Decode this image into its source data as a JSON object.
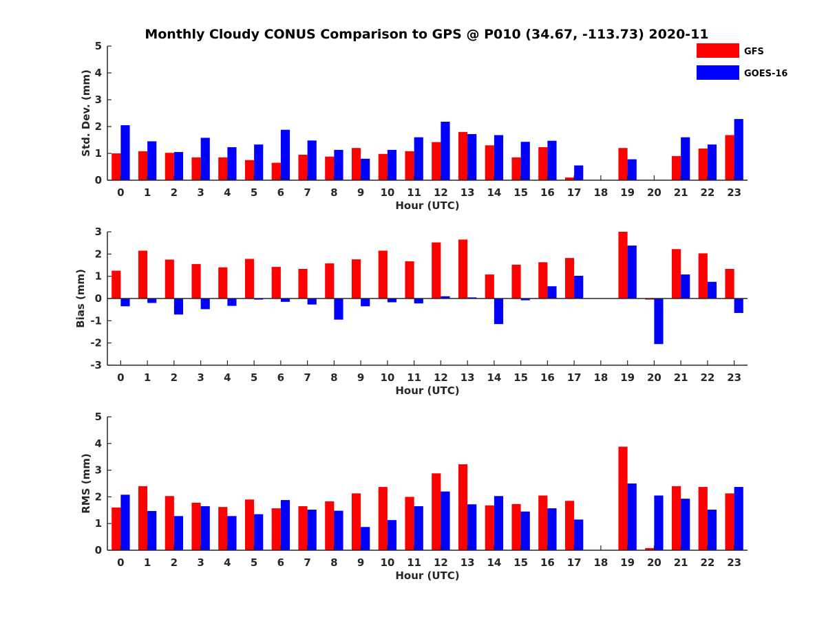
{
  "title": "Monthly Cloudy CONUS Comparison to GPS @ P010 (34.67, -113.73) 2020-11",
  "legend": {
    "placement": "top-right",
    "entries": [
      {
        "name": "GFS",
        "color": "#ff0000"
      },
      {
        "name": "GOES-16",
        "color": "#0000ff"
      }
    ]
  },
  "chart_data": [
    {
      "type": "bar",
      "title": "Monthly Cloudy CONUS Comparison to GPS @ P010 (34.67, -113.73) 2020-11",
      "xlabel": "Hour (UTC)",
      "ylabel": "Std. Dev. (mm)",
      "ylim": [
        0,
        5
      ],
      "yticks": [
        0,
        1,
        2,
        3,
        4,
        5
      ],
      "categories": [
        "0",
        "1",
        "2",
        "3",
        "4",
        "5",
        "6",
        "7",
        "8",
        "9",
        "10",
        "11",
        "12",
        "13",
        "14",
        "15",
        "16",
        "17",
        "18",
        "19",
        "20",
        "21",
        "22",
        "23"
      ],
      "series": [
        {
          "name": "GFS",
          "color": "#ff0000",
          "values": [
            1.0,
            1.08,
            1.02,
            0.85,
            0.85,
            0.75,
            0.65,
            0.95,
            0.88,
            1.2,
            0.98,
            1.08,
            1.42,
            1.8,
            1.3,
            0.85,
            1.23,
            0.1,
            0,
            1.2,
            0,
            0.9,
            1.18,
            1.68
          ]
        },
        {
          "name": "GOES-16",
          "color": "#0000ff",
          "values": [
            2.05,
            1.45,
            1.05,
            1.58,
            1.23,
            1.33,
            1.88,
            1.48,
            1.13,
            0.8,
            1.13,
            1.6,
            2.18,
            1.72,
            1.68,
            1.43,
            1.47,
            0.55,
            0,
            0.78,
            0,
            1.6,
            1.33,
            2.28
          ]
        }
      ]
    },
    {
      "type": "bar",
      "xlabel": "Hour (UTC)",
      "ylabel": "Bias (mm)",
      "ylim": [
        -3,
        3
      ],
      "yticks": [
        -3,
        -2,
        -1,
        0,
        1,
        2,
        3
      ],
      "categories": [
        "0",
        "1",
        "2",
        "3",
        "4",
        "5",
        "6",
        "7",
        "8",
        "9",
        "10",
        "11",
        "12",
        "13",
        "14",
        "15",
        "16",
        "17",
        "18",
        "19",
        "20",
        "21",
        "22",
        "23"
      ],
      "series": [
        {
          "name": "GFS",
          "color": "#ff0000",
          "values": [
            1.25,
            2.15,
            1.75,
            1.55,
            1.4,
            1.78,
            1.42,
            1.33,
            1.58,
            1.76,
            2.15,
            1.67,
            2.52,
            2.65,
            1.08,
            1.52,
            1.63,
            1.82,
            0,
            3.0,
            -0.05,
            2.22,
            2.03,
            1.33
          ]
        },
        {
          "name": "GOES-16",
          "color": "#0000ff",
          "values": [
            -0.35,
            -0.2,
            -0.72,
            -0.48,
            -0.33,
            -0.05,
            -0.15,
            -0.27,
            -0.95,
            -0.35,
            -0.17,
            -0.22,
            0.1,
            0.05,
            -1.15,
            -0.08,
            0.55,
            1.02,
            0,
            2.38,
            -2.05,
            1.08,
            0.75,
            -0.65
          ]
        }
      ]
    },
    {
      "type": "bar",
      "xlabel": "Hour (UTC)",
      "ylabel": "RMS (mm)",
      "ylim": [
        0,
        5
      ],
      "yticks": [
        0,
        1,
        2,
        3,
        4,
        5
      ],
      "categories": [
        "0",
        "1",
        "2",
        "3",
        "4",
        "5",
        "6",
        "7",
        "8",
        "9",
        "10",
        "11",
        "12",
        "13",
        "14",
        "15",
        "16",
        "17",
        "18",
        "19",
        "20",
        "21",
        "22",
        "23"
      ],
      "series": [
        {
          "name": "GFS",
          "color": "#ff0000",
          "values": [
            1.6,
            2.4,
            2.03,
            1.78,
            1.62,
            1.9,
            1.57,
            1.65,
            1.83,
            2.13,
            2.37,
            2.0,
            2.88,
            3.22,
            1.68,
            1.73,
            2.05,
            1.85,
            0,
            3.88,
            0.08,
            2.4,
            2.37,
            2.13
          ]
        },
        {
          "name": "GOES-16",
          "color": "#0000ff",
          "values": [
            2.08,
            1.47,
            1.28,
            1.65,
            1.28,
            1.35,
            1.88,
            1.52,
            1.48,
            0.87,
            1.13,
            1.65,
            2.2,
            1.72,
            2.03,
            1.45,
            1.57,
            1.15,
            0,
            2.5,
            2.05,
            1.93,
            1.52,
            2.37
          ]
        }
      ]
    }
  ]
}
